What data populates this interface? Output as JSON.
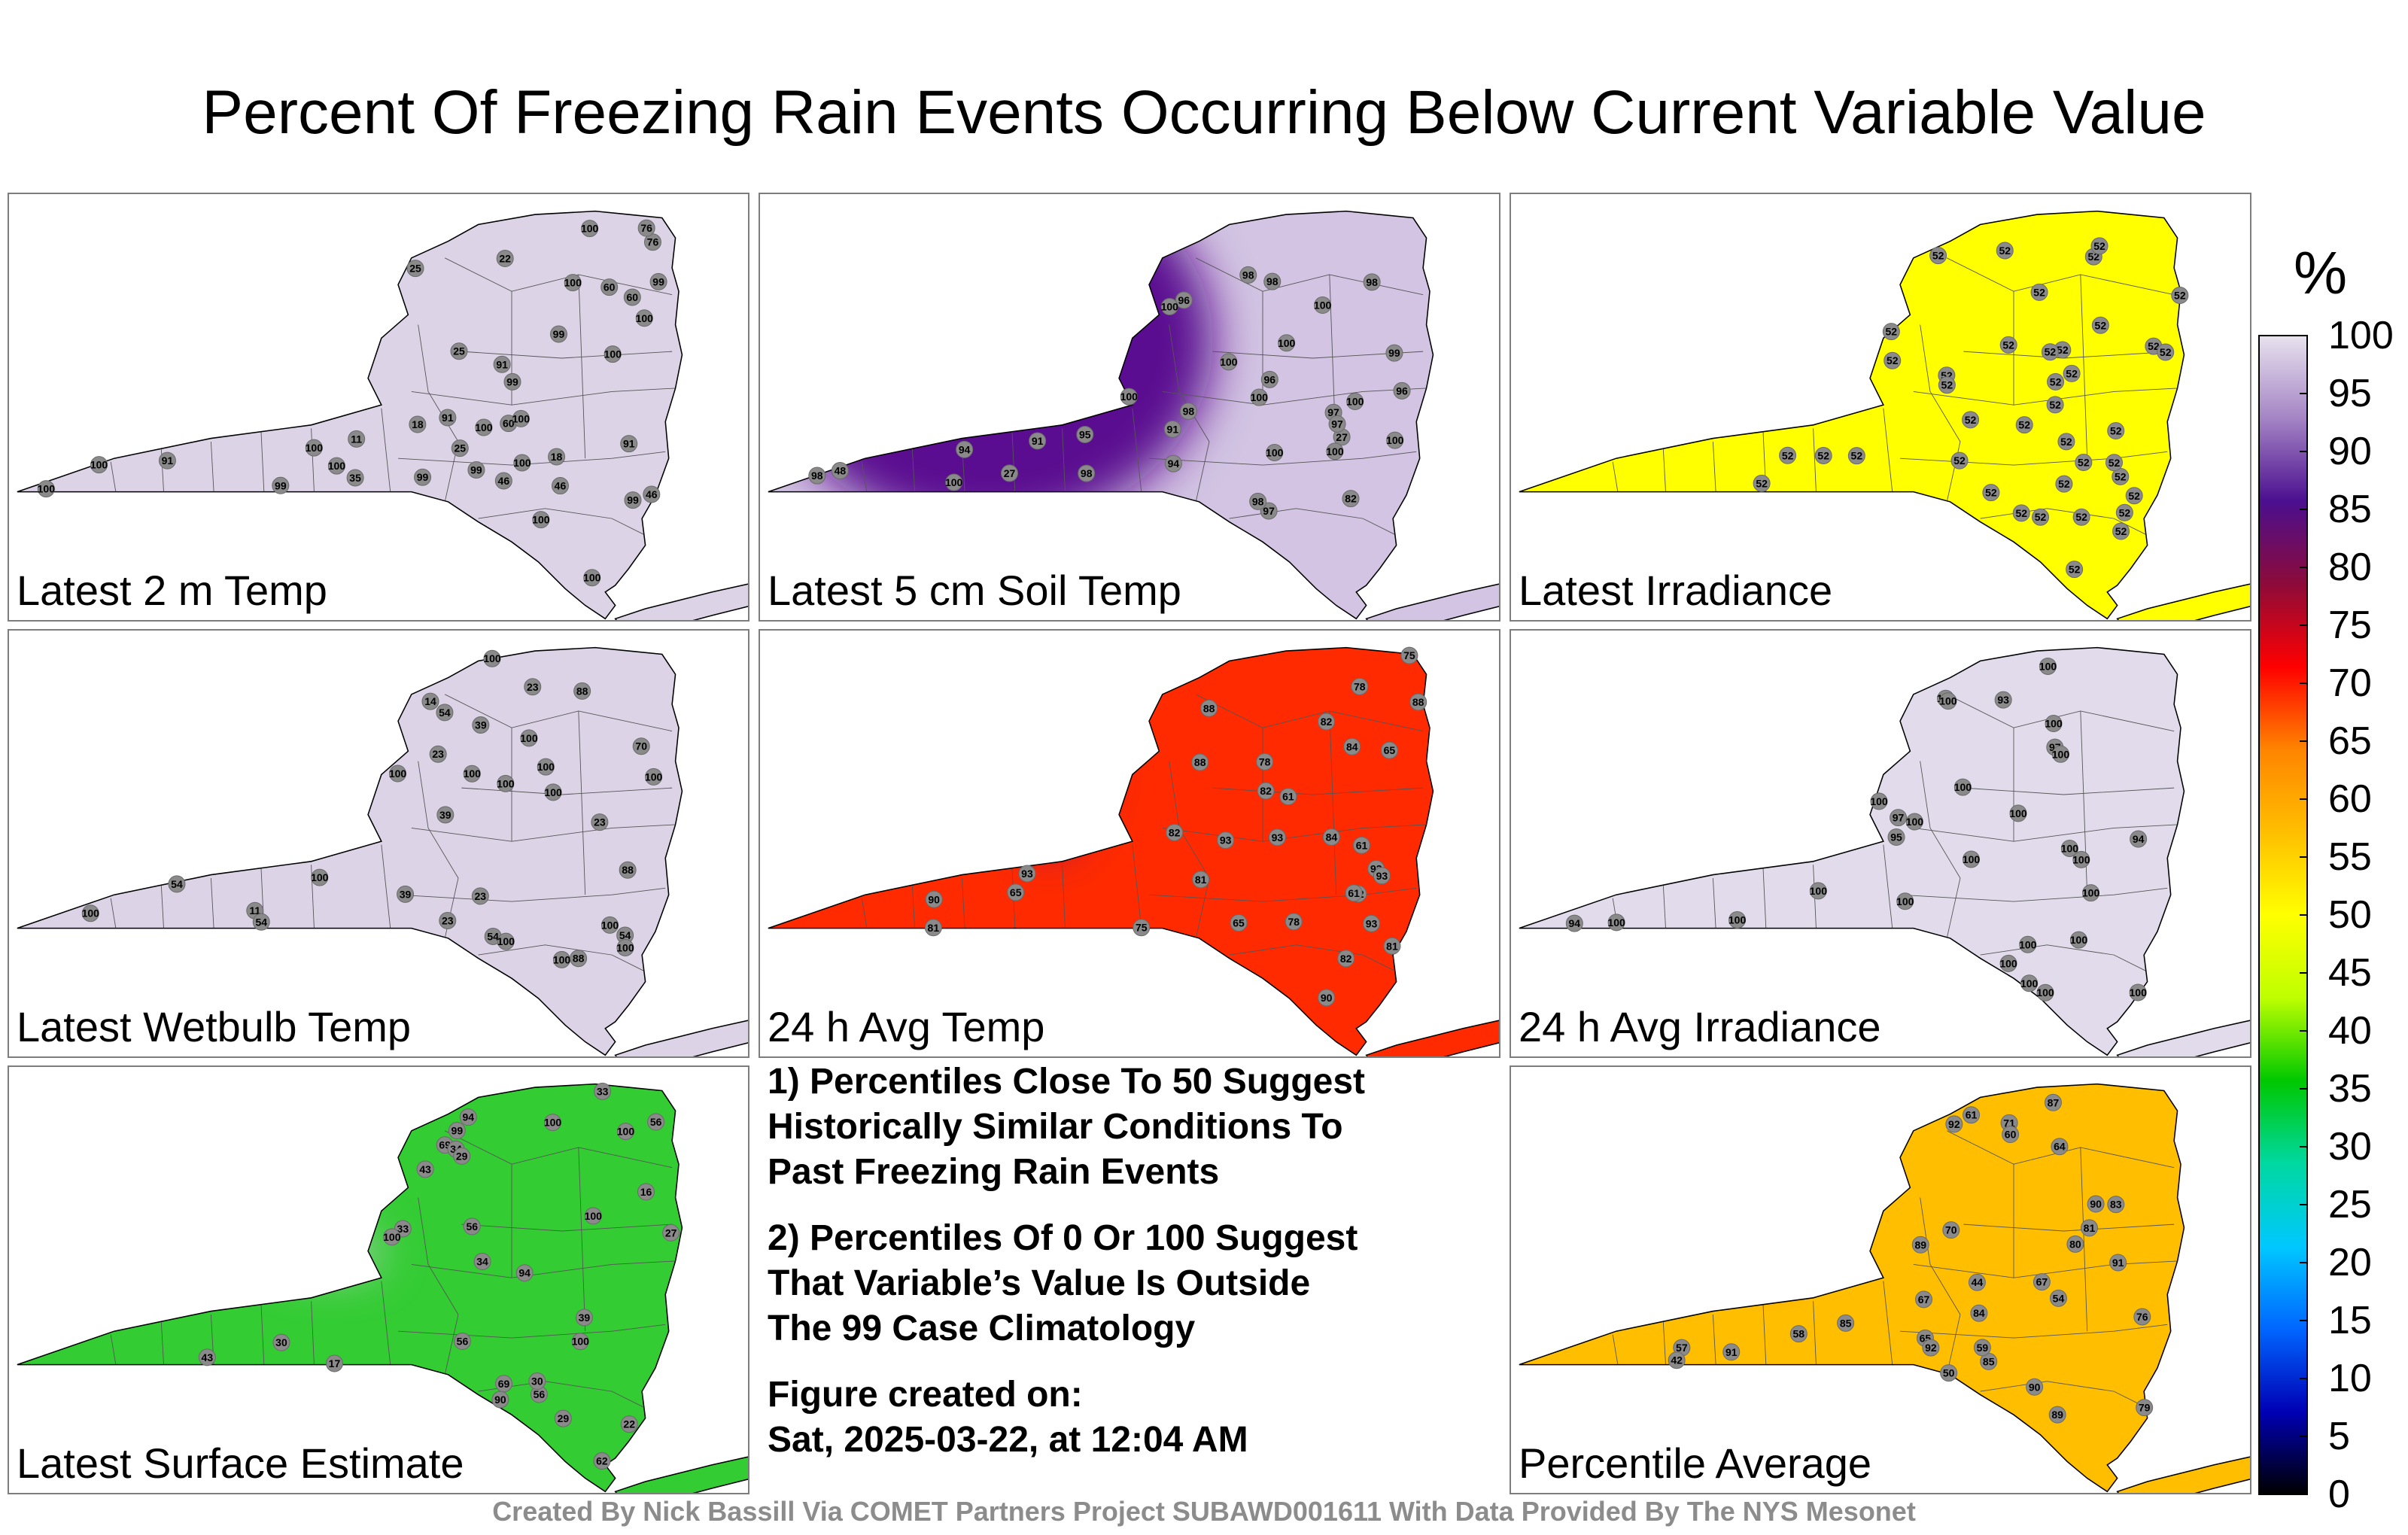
{
  "title": "Percent Of Freezing Rain Events Occurring Below Current Variable Value",
  "colorbar": {
    "unit": "%",
    "ticks": [
      "100",
      "95",
      "90",
      "85",
      "80",
      "75",
      "70",
      "65",
      "60",
      "55",
      "50",
      "45",
      "40",
      "35",
      "30",
      "25",
      "20",
      "15",
      "10",
      "5",
      "0"
    ],
    "stops": [
      "#e8e2ee",
      "#a585c5",
      "#4b0f8f",
      "#8c0b3a",
      "#ff0000",
      "#ff8400",
      "#ffbf00",
      "#ffff00",
      "#bfff00",
      "#00c800",
      "#00d8a0",
      "#00c8ff",
      "#0066ff",
      "#0000b4",
      "#000000"
    ]
  },
  "panels": [
    {
      "label": "Latest 2 m Temp",
      "base_color": "#dcd3e7",
      "blobs": [
        {
          "color": "#8c0b3a"
        },
        {
          "color": "#ff3000"
        },
        {
          "color": "#ffcc00"
        },
        {
          "color": "#33cc33"
        },
        {
          "color": "#00d8a0"
        },
        {
          "color": "#00c8ff"
        },
        {
          "color": "#1e7cff"
        }
      ],
      "stations": [
        "99",
        "91",
        "22",
        "60",
        "91",
        "60",
        "25",
        "46",
        "18",
        "99",
        "11",
        "35",
        "99",
        "76",
        "100",
        "100",
        "100",
        "100",
        "100",
        "99",
        "91",
        "100",
        "99",
        "100",
        "100",
        "25",
        "46",
        "99",
        "18",
        "25",
        "46",
        "76",
        "60",
        "91",
        "100",
        "100",
        "99",
        "100",
        "100",
        "100"
      ]
    },
    {
      "label": "Latest 5 cm Soil Temp",
      "base_color": "#d2c4e2",
      "blobs": [
        {
          "color": "#5a1090"
        },
        {
          "color": "#ff2a00"
        },
        {
          "color": "#ffd000"
        },
        {
          "color": "#ff4000"
        },
        {
          "color": "#ffe000"
        }
      ],
      "stations": [
        "94",
        "95",
        "96",
        "97",
        "98",
        "100",
        "48",
        "27",
        "82",
        "91",
        "99",
        "100",
        "98",
        "98",
        "97",
        "96",
        "27",
        "98",
        "91",
        "98",
        "94",
        "98",
        "100",
        "98",
        "96",
        "100",
        "100",
        "97",
        "100",
        "100",
        "100",
        "100",
        "100",
        "100"
      ]
    },
    {
      "label": "Latest Irradiance",
      "base_color": "#ffff00",
      "blobs": [],
      "stations": [
        "52",
        "52",
        "52",
        "52",
        "52",
        "52",
        "52",
        "52",
        "52",
        "52",
        "52",
        "52",
        "52",
        "52",
        "52",
        "52",
        "52",
        "52",
        "52",
        "52",
        "52",
        "52",
        "52",
        "52",
        "52",
        "52",
        "52",
        "52",
        "52",
        "52",
        "52",
        "52",
        "52",
        "52",
        "52",
        "52",
        "52",
        "52",
        "52",
        "52"
      ]
    },
    {
      "label": "Latest Wetbulb Temp",
      "base_color": "#dcd3e7",
      "blobs": [
        {
          "color": "#8c0b3a"
        },
        {
          "color": "#ff3000"
        },
        {
          "color": "#ffcc00"
        },
        {
          "color": "#33cc33"
        },
        {
          "color": "#00d8a0"
        },
        {
          "color": "#00c8ff"
        },
        {
          "color": "#1e7cff"
        }
      ],
      "stations": [
        "100",
        "100",
        "23",
        "70",
        "54",
        "23",
        "39",
        "11",
        "23",
        "39",
        "88",
        "54",
        "14",
        "54",
        "100",
        "100",
        "100",
        "100",
        "100",
        "100",
        "100",
        "100",
        "88",
        "23",
        "39",
        "54",
        "88",
        "23",
        "54",
        "100",
        "100",
        "100",
        "100"
      ]
    },
    {
      "label": "24 h Avg Temp",
      "base_color": "#ff2a00",
      "blobs": [
        {
          "color": "#8c0b3a"
        },
        {
          "color": "#5a1090"
        },
        {
          "color": "#ff8400"
        },
        {
          "color": "#ffbf00"
        },
        {
          "color": "#ff8400"
        }
      ],
      "stations": [
        "82",
        "78",
        "81",
        "88",
        "75",
        "61",
        "65",
        "61",
        "90",
        "88",
        "84",
        "82",
        "81",
        "78",
        "75",
        "65",
        "61",
        "65",
        "84",
        "82",
        "90",
        "93",
        "82",
        "81",
        "88",
        "78",
        "82",
        "93",
        "93",
        "93",
        "93",
        "93"
      ]
    },
    {
      "label": "24 h Avg Irradiance",
      "base_color": "#e2dbeb",
      "blobs": [
        {
          "color": "#c7b6dc"
        }
      ],
      "stations": [
        "100",
        "100",
        "97",
        "94",
        "95",
        "93",
        "100",
        "100",
        "100",
        "94",
        "100",
        "100",
        "97",
        "100",
        "100",
        "100",
        "100",
        "100",
        "100",
        "100",
        "100",
        "100",
        "100",
        "100",
        "100",
        "100",
        "100",
        "100",
        "100"
      ]
    },
    {
      "label": "Latest Surface Estimate",
      "base_color": "#33cc33",
      "blobs": [
        {
          "color": "#dcd3e7"
        },
        {
          "color": "#dcd3e7"
        },
        {
          "color": "#ff4000"
        },
        {
          "color": "#ffcc00"
        },
        {
          "color": "#00c8ff"
        },
        {
          "color": "#00d8a0"
        },
        {
          "color": "#ffd000"
        },
        {
          "color": "#ff4000"
        }
      ],
      "stations": [
        "56",
        "69",
        "43",
        "29",
        "39",
        "62",
        "34",
        "56",
        "29",
        "33",
        "30",
        "16",
        "17",
        "22",
        "99",
        "100",
        "94",
        "90",
        "56",
        "69",
        "43",
        "30",
        "27",
        "33",
        "34",
        "56",
        "94",
        "100",
        "100",
        "100",
        "100"
      ]
    },
    {
      "label": "Percentile Average",
      "base_color": "#ffbf00",
      "blobs": [
        {
          "color": "#4b0f8f"
        },
        {
          "color": "#8c0b3a"
        },
        {
          "color": "#ff2a00"
        },
        {
          "color": "#ffff00"
        },
        {
          "color": "#ffff00"
        },
        {
          "color": "#ff4000"
        },
        {
          "color": "#ff2a00"
        }
      ],
      "stations": [
        "83",
        "85",
        "80",
        "58",
        "71",
        "57",
        "67",
        "60",
        "81",
        "54",
        "42",
        "44",
        "50",
        "79",
        "91",
        "90",
        "89",
        "85",
        "90",
        "84",
        "61",
        "64",
        "65",
        "70",
        "76",
        "59",
        "67",
        "87",
        "91",
        "92",
        "92",
        "89"
      ]
    }
  ],
  "notes": [
    "1) Percentiles Close To 50 Suggest\nHistorically Similar Conditions To\nPast Freezing Rain Events",
    "2) Percentiles Of 0 Or 100 Suggest\nThat Variable’s Value Is Outside\nThe 99 Case Climatology",
    "Figure created on:\nSat, 2025-03-22, at 12:04 AM"
  ],
  "credit": "Created By Nick Bassill Via COMET Partners Project SUBAWD001611 With Data Provided By The NYS Mesonet"
}
